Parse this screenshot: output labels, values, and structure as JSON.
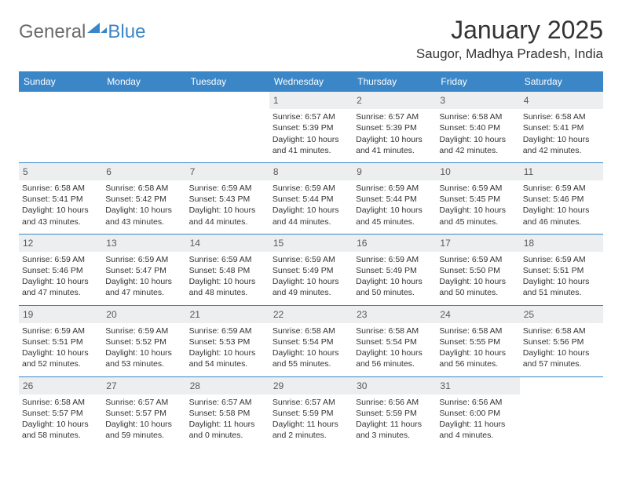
{
  "brand": {
    "general": "General",
    "blue": "Blue"
  },
  "colors": {
    "header_bg": "#3b86c7",
    "header_text": "#ffffff",
    "daynum_bg": "#eceeef",
    "daynum_text": "#5a5a5a",
    "body_text": "#333333",
    "separator": "#3b86c7"
  },
  "title": "January 2025",
  "location": "Saugor, Madhya Pradesh, India",
  "day_labels": [
    "Sunday",
    "Monday",
    "Tuesday",
    "Wednesday",
    "Thursday",
    "Friday",
    "Saturday"
  ],
  "weeks": [
    [
      null,
      null,
      null,
      {
        "n": "1",
        "sr": "6:57 AM",
        "ss": "5:39 PM",
        "dl": "10 hours and 41 minutes."
      },
      {
        "n": "2",
        "sr": "6:57 AM",
        "ss": "5:39 PM",
        "dl": "10 hours and 41 minutes."
      },
      {
        "n": "3",
        "sr": "6:58 AM",
        "ss": "5:40 PM",
        "dl": "10 hours and 42 minutes."
      },
      {
        "n": "4",
        "sr": "6:58 AM",
        "ss": "5:41 PM",
        "dl": "10 hours and 42 minutes."
      }
    ],
    [
      {
        "n": "5",
        "sr": "6:58 AM",
        "ss": "5:41 PM",
        "dl": "10 hours and 43 minutes."
      },
      {
        "n": "6",
        "sr": "6:58 AM",
        "ss": "5:42 PM",
        "dl": "10 hours and 43 minutes."
      },
      {
        "n": "7",
        "sr": "6:59 AM",
        "ss": "5:43 PM",
        "dl": "10 hours and 44 minutes."
      },
      {
        "n": "8",
        "sr": "6:59 AM",
        "ss": "5:44 PM",
        "dl": "10 hours and 44 minutes."
      },
      {
        "n": "9",
        "sr": "6:59 AM",
        "ss": "5:44 PM",
        "dl": "10 hours and 45 minutes."
      },
      {
        "n": "10",
        "sr": "6:59 AM",
        "ss": "5:45 PM",
        "dl": "10 hours and 45 minutes."
      },
      {
        "n": "11",
        "sr": "6:59 AM",
        "ss": "5:46 PM",
        "dl": "10 hours and 46 minutes."
      }
    ],
    [
      {
        "n": "12",
        "sr": "6:59 AM",
        "ss": "5:46 PM",
        "dl": "10 hours and 47 minutes."
      },
      {
        "n": "13",
        "sr": "6:59 AM",
        "ss": "5:47 PM",
        "dl": "10 hours and 47 minutes."
      },
      {
        "n": "14",
        "sr": "6:59 AM",
        "ss": "5:48 PM",
        "dl": "10 hours and 48 minutes."
      },
      {
        "n": "15",
        "sr": "6:59 AM",
        "ss": "5:49 PM",
        "dl": "10 hours and 49 minutes."
      },
      {
        "n": "16",
        "sr": "6:59 AM",
        "ss": "5:49 PM",
        "dl": "10 hours and 50 minutes."
      },
      {
        "n": "17",
        "sr": "6:59 AM",
        "ss": "5:50 PM",
        "dl": "10 hours and 50 minutes."
      },
      {
        "n": "18",
        "sr": "6:59 AM",
        "ss": "5:51 PM",
        "dl": "10 hours and 51 minutes."
      }
    ],
    [
      {
        "n": "19",
        "sr": "6:59 AM",
        "ss": "5:51 PM",
        "dl": "10 hours and 52 minutes."
      },
      {
        "n": "20",
        "sr": "6:59 AM",
        "ss": "5:52 PM",
        "dl": "10 hours and 53 minutes."
      },
      {
        "n": "21",
        "sr": "6:59 AM",
        "ss": "5:53 PM",
        "dl": "10 hours and 54 minutes."
      },
      {
        "n": "22",
        "sr": "6:58 AM",
        "ss": "5:54 PM",
        "dl": "10 hours and 55 minutes."
      },
      {
        "n": "23",
        "sr": "6:58 AM",
        "ss": "5:54 PM",
        "dl": "10 hours and 56 minutes."
      },
      {
        "n": "24",
        "sr": "6:58 AM",
        "ss": "5:55 PM",
        "dl": "10 hours and 56 minutes."
      },
      {
        "n": "25",
        "sr": "6:58 AM",
        "ss": "5:56 PM",
        "dl": "10 hours and 57 minutes."
      }
    ],
    [
      {
        "n": "26",
        "sr": "6:58 AM",
        "ss": "5:57 PM",
        "dl": "10 hours and 58 minutes."
      },
      {
        "n": "27",
        "sr": "6:57 AM",
        "ss": "5:57 PM",
        "dl": "10 hours and 59 minutes."
      },
      {
        "n": "28",
        "sr": "6:57 AM",
        "ss": "5:58 PM",
        "dl": "11 hours and 0 minutes."
      },
      {
        "n": "29",
        "sr": "6:57 AM",
        "ss": "5:59 PM",
        "dl": "11 hours and 2 minutes."
      },
      {
        "n": "30",
        "sr": "6:56 AM",
        "ss": "5:59 PM",
        "dl": "11 hours and 3 minutes."
      },
      {
        "n": "31",
        "sr": "6:56 AM",
        "ss": "6:00 PM",
        "dl": "11 hours and 4 minutes."
      },
      null
    ]
  ],
  "labels": {
    "sunrise": "Sunrise:",
    "sunset": "Sunset:",
    "daylight": "Daylight:"
  }
}
